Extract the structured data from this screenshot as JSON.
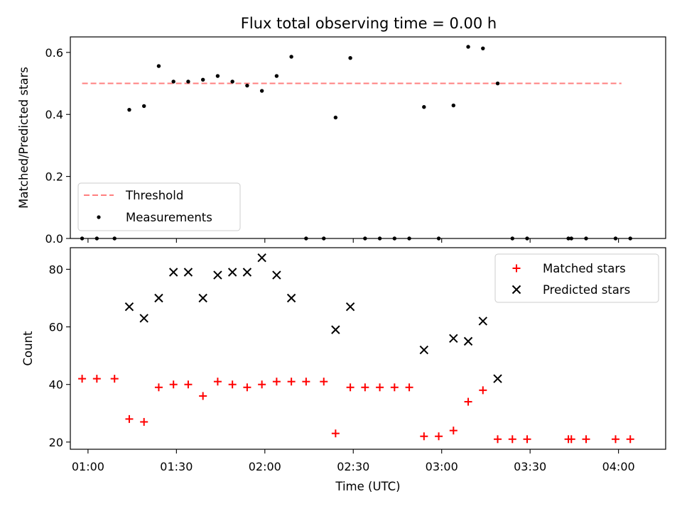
{
  "chart_data": [
    {
      "type": "scatter",
      "title": "Flux total observing time = 0.00 h",
      "ylabel": "Matched/Predicted stars",
      "xlabel": "",
      "ylim": [
        0,
        0.65
      ],
      "yticks": [
        "0.0",
        "0.2",
        "0.4",
        "0.6"
      ],
      "ytick_values": [
        0.0,
        0.2,
        0.4,
        0.6
      ],
      "grid": false,
      "legend_position": "lower-left",
      "threshold": {
        "name": "Threshold",
        "value": 0.5,
        "x_start": "00:58",
        "x_end": "04:01",
        "color": "#ff7f7f",
        "style": "dashed"
      },
      "series": [
        {
          "name": "Measurements",
          "color": "#000000",
          "marker": "dot",
          "x": [
            "00:58",
            "01:03",
            "01:09",
            "01:14",
            "01:19",
            "01:24",
            "01:29",
            "01:34",
            "01:39",
            "01:44",
            "01:49",
            "01:54",
            "01:59",
            "02:04",
            "02:09",
            "02:14",
            "02:20",
            "02:24",
            "02:29",
            "02:34",
            "02:39",
            "02:44",
            "02:49",
            "02:54",
            "02:59",
            "03:04",
            "03:09",
            "03:14",
            "03:19",
            "03:24",
            "03:29",
            "03:43",
            "03:44",
            "03:49",
            "03:59",
            "04:04"
          ],
          "y": [
            0.0,
            0.0,
            0.0,
            0.415,
            0.427,
            0.556,
            0.506,
            0.506,
            0.512,
            0.524,
            0.506,
            0.493,
            0.476,
            0.524,
            0.586,
            0.0,
            0.0,
            0.39,
            0.582,
            0.0,
            0.0,
            0.0,
            0.0,
            0.424,
            0.0,
            0.429,
            0.618,
            0.613,
            0.5,
            0.0,
            0.0,
            0.0,
            0.0,
            0.0,
            0.0,
            0.0
          ]
        }
      ]
    },
    {
      "type": "scatter",
      "title": "",
      "ylabel": "Count",
      "xlabel": "Time (UTC)",
      "ylim": [
        17.5,
        87.5
      ],
      "yticks": [
        "20",
        "40",
        "60",
        "80"
      ],
      "ytick_values": [
        20,
        40,
        60,
        80
      ],
      "xticks": [
        "01:00",
        "01:30",
        "02:00",
        "02:30",
        "03:00",
        "03:30",
        "04:00"
      ],
      "xtick_values": [
        "01:00",
        "01:30",
        "02:00",
        "02:30",
        "03:00",
        "03:30",
        "04:00"
      ],
      "xlim": [
        "00:54",
        "04:16"
      ],
      "grid": false,
      "legend_position": "top-right",
      "series": [
        {
          "name": "Matched stars",
          "color": "#ff0000",
          "marker": "plus",
          "x": [
            "00:58",
            "01:03",
            "01:09",
            "01:14",
            "01:19",
            "01:24",
            "01:29",
            "01:34",
            "01:39",
            "01:44",
            "01:49",
            "01:54",
            "01:59",
            "02:04",
            "02:09",
            "02:14",
            "02:20",
            "02:24",
            "02:29",
            "02:34",
            "02:39",
            "02:44",
            "02:49",
            "02:54",
            "02:59",
            "03:04",
            "03:09",
            "03:14",
            "03:19",
            "03:24",
            "03:29",
            "03:43",
            "03:44",
            "03:49",
            "03:59",
            "04:04"
          ],
          "y": [
            42,
            42,
            42,
            28,
            27,
            39,
            40,
            40,
            36,
            41,
            40,
            39,
            40,
            41,
            41,
            41,
            41,
            23,
            39,
            39,
            39,
            39,
            39,
            22,
            22,
            24,
            34,
            38,
            21,
            21,
            21,
            21,
            21,
            21,
            21,
            21
          ]
        },
        {
          "name": "Predicted stars",
          "color": "#000000",
          "marker": "x",
          "x": [
            "01:14",
            "01:19",
            "01:24",
            "01:29",
            "01:34",
            "01:39",
            "01:44",
            "01:49",
            "01:54",
            "01:59",
            "02:04",
            "02:09",
            "02:24",
            "02:29",
            "02:54",
            "03:04",
            "03:09",
            "03:14",
            "03:19"
          ],
          "y": [
            67,
            63,
            70,
            79,
            79,
            70,
            78,
            79,
            79,
            84,
            78,
            70,
            59,
            67,
            52,
            56,
            55,
            62,
            42
          ]
        }
      ]
    }
  ]
}
